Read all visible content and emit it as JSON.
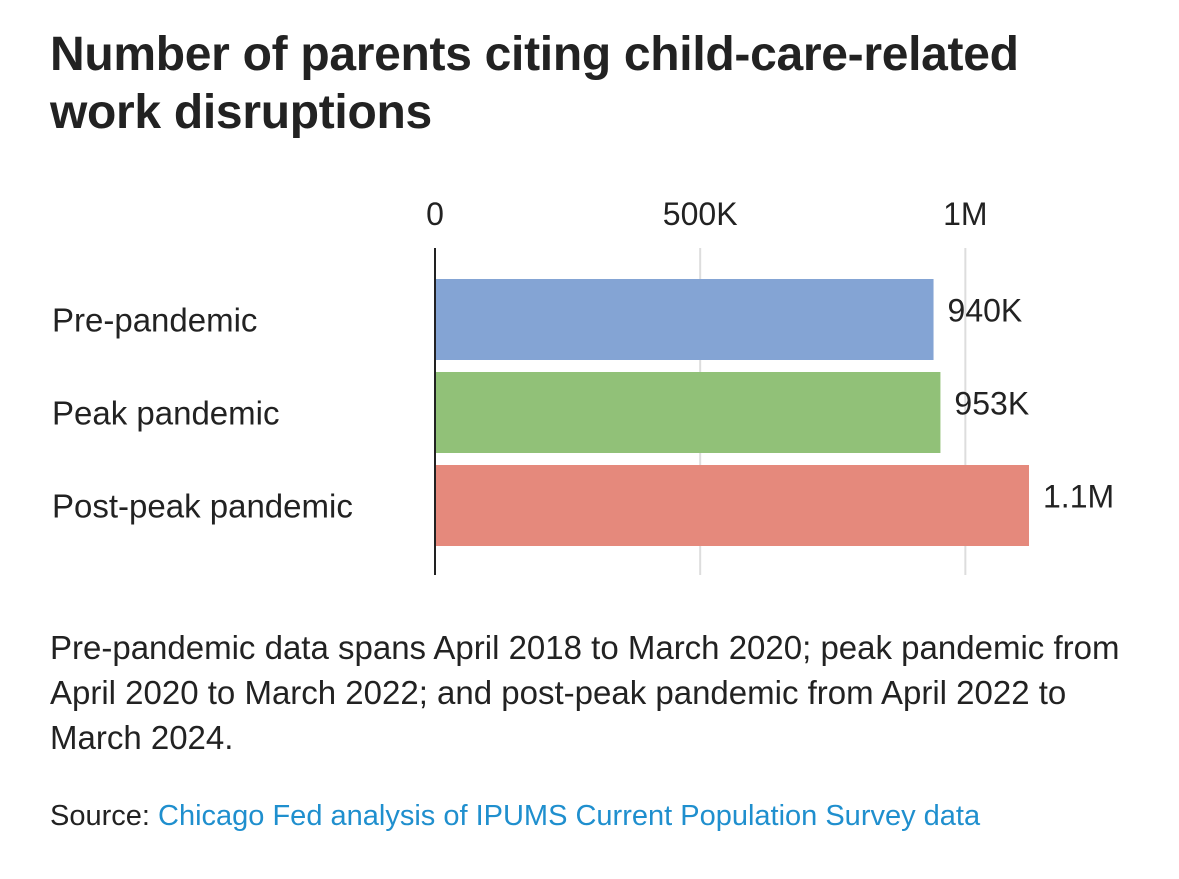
{
  "chart_data": {
    "type": "bar",
    "orientation": "horizontal",
    "title": "Number of parents citing child-care-related work disruptions",
    "categories": [
      "Pre-pandemic",
      "Peak pandemic",
      "Post-peak pandemic"
    ],
    "values": [
      940000,
      953000,
      1120000
    ],
    "value_labels": [
      "940K",
      "953K",
      "1.1M"
    ],
    "colors": [
      "#84a4d4",
      "#91c178",
      "#e5897c"
    ],
    "x_ticks": [
      0,
      500000,
      1000000
    ],
    "x_tick_labels": [
      "0",
      "500K",
      "1M"
    ],
    "xlim": [
      0,
      1120000
    ],
    "xaxis_position": "top",
    "grid": true,
    "legend": "none"
  },
  "note": "Pre-pandemic data spans April 2018 to March 2020; peak pandemic from April 2020 to March 2022; and post-peak pandemic from April 2022 to March 2024.",
  "source": {
    "label": "Source:",
    "link_text": "Chicago Fed analysis of IPUMS Current Population Survey data"
  }
}
